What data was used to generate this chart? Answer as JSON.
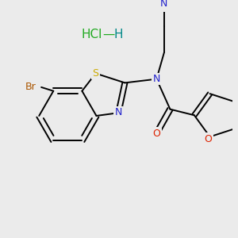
{
  "background_color": "#ebebeb",
  "atom_colors": {
    "C": "#000000",
    "N": "#2222cc",
    "O": "#dd2200",
    "S": "#ccaa00",
    "Br": "#aa5500",
    "Cl": "#22aa22"
  },
  "bond_color": "#000000",
  "bond_width": 1.4,
  "hcl_color": "#22aa22",
  "hcl_h_color": "#008888"
}
